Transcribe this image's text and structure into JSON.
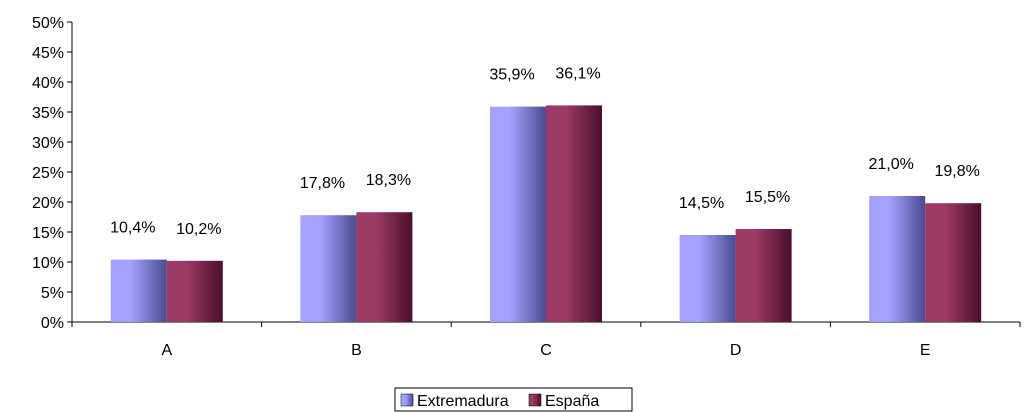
{
  "chart_data": {
    "type": "bar",
    "title": "",
    "xlabel": "",
    "ylabel": "",
    "categories": [
      "A",
      "B",
      "C",
      "D",
      "E"
    ],
    "series": [
      {
        "name": "Extremadura",
        "values": [
          10.4,
          17.8,
          35.9,
          14.5,
          21.0
        ],
        "labels": [
          "10,4%",
          "17,8%",
          "35,9%",
          "14,5%",
          "21,0%"
        ]
      },
      {
        "name": "España",
        "values": [
          10.2,
          18.3,
          36.1,
          15.5,
          19.8
        ],
        "labels": [
          "10,2%",
          "18,3%",
          "36,1%",
          "15,5%",
          "19,8%"
        ]
      }
    ],
    "ylim": [
      0,
      50
    ],
    "yticks": [
      0,
      5,
      10,
      15,
      20,
      25,
      30,
      35,
      40,
      45,
      50
    ],
    "ytick_labels": [
      "0%",
      "5%",
      "10%",
      "15%",
      "20%",
      "25%",
      "30%",
      "35%",
      "40%",
      "45%",
      "50%"
    ],
    "legend_position": "bottom",
    "grid": false,
    "colors": {
      "Extremadura": {
        "light": "#a3a3ff",
        "dark": "#4a4a8f"
      },
      "España": {
        "light": "#9c3a66",
        "dark": "#4a0f2c"
      }
    }
  }
}
